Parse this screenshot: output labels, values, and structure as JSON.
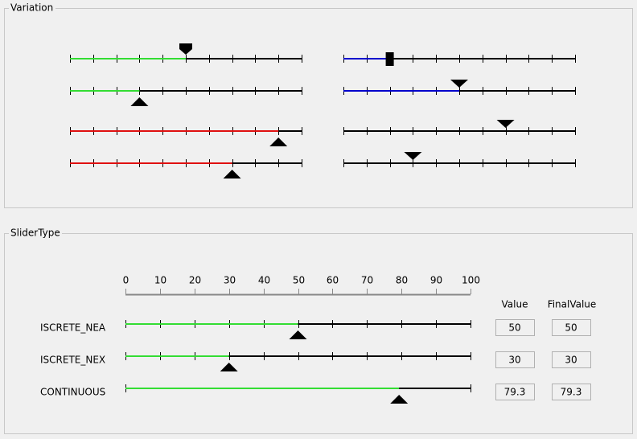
{
  "variation": {
    "title": "Variation",
    "range": [
      0,
      100
    ],
    "ticks": [
      0,
      10,
      20,
      30,
      40,
      50,
      60,
      70,
      80,
      90,
      100
    ],
    "sliders": [
      {
        "column": "left",
        "value": 50,
        "color": "#33dd33",
        "thumb": "pentagon-down"
      },
      {
        "column": "left",
        "value": 30,
        "color": "#33dd33",
        "thumb": "triangle-up"
      },
      {
        "column": "left",
        "value": 90,
        "color": "#e01010",
        "thumb": "triangle-up"
      },
      {
        "column": "left",
        "value": 70,
        "color": "#e01010",
        "thumb": "triangle-up"
      },
      {
        "column": "right",
        "value": 20,
        "color": "#0000cc",
        "thumb": "square"
      },
      {
        "column": "right",
        "value": 50,
        "color": "#0000cc",
        "thumb": "triangle-down"
      },
      {
        "column": "right",
        "value": 70,
        "color": "#000000",
        "thumb": "triangle-down"
      },
      {
        "column": "right",
        "value": 30,
        "color": "#000000",
        "thumb": "triangle-down"
      }
    ]
  },
  "slider_type": {
    "title": "SliderType",
    "range": [
      0,
      100
    ],
    "ticks": [
      0,
      10,
      20,
      30,
      40,
      50,
      60,
      70,
      80,
      90,
      100
    ],
    "headers": {
      "value": "Value",
      "final_value": "FinalValue"
    },
    "fill_color": "#33dd33",
    "rows": [
      {
        "label": "ISCRETE_NEA",
        "value": 50,
        "final_value": 50,
        "show_ticks": true
      },
      {
        "label": "ISCRETE_NEX",
        "value": 30,
        "final_value": 30,
        "show_ticks": true
      },
      {
        "label": "CONTINUOUS",
        "value": 79.3,
        "final_value": 79.3,
        "show_ticks": false
      }
    ]
  }
}
